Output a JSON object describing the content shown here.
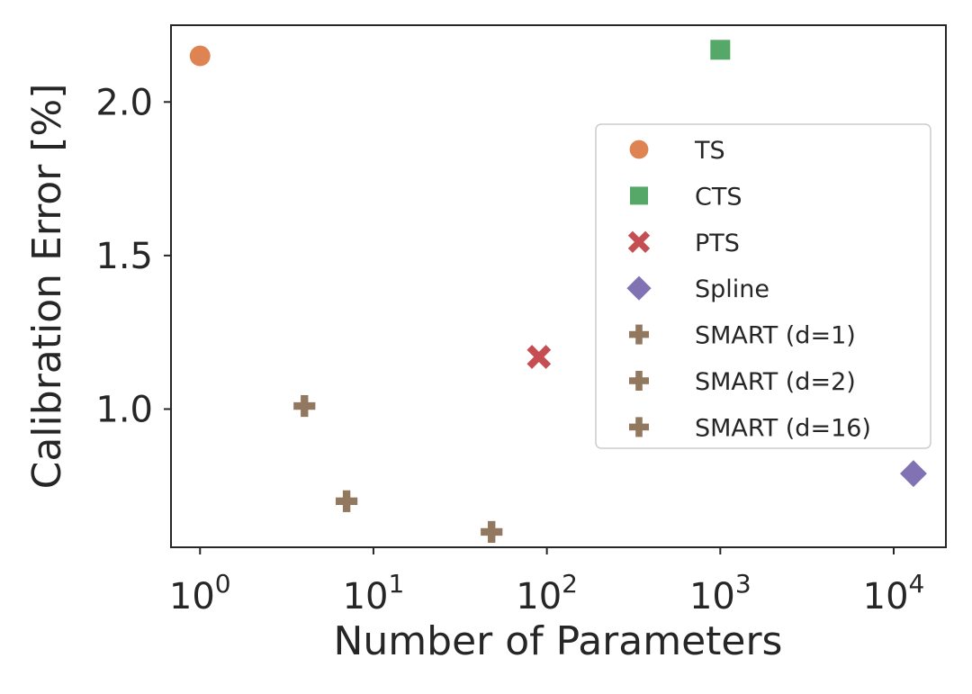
{
  "chart_data": {
    "type": "scatter",
    "title": "",
    "xlabel": "Number of Parameters",
    "ylabel": "Calibration Error [%]",
    "xscale": "log",
    "xlim": [
      0.68,
      20000
    ],
    "ylim": [
      0.55,
      2.25
    ],
    "grid": false,
    "legend_position": "center-right",
    "x_ticks": [
      {
        "value": 1,
        "base": "10",
        "exp": "0"
      },
      {
        "value": 10,
        "base": "10",
        "exp": "1"
      },
      {
        "value": 100,
        "base": "10",
        "exp": "2"
      },
      {
        "value": 1000,
        "base": "10",
        "exp": "3"
      },
      {
        "value": 10000,
        "base": "10",
        "exp": "4"
      }
    ],
    "y_ticks": [
      {
        "value": 1.0,
        "label": "1.0"
      },
      {
        "value": 1.5,
        "label": "1.5"
      },
      {
        "value": 2.0,
        "label": "2.0"
      }
    ],
    "series": [
      {
        "name": "TS",
        "marker": "circle",
        "color": "#dd8452",
        "points": [
          {
            "x": 1,
            "y": 2.15
          }
        ]
      },
      {
        "name": "CTS",
        "marker": "square",
        "color": "#55a868",
        "points": [
          {
            "x": 1000,
            "y": 2.17
          }
        ]
      },
      {
        "name": "PTS",
        "marker": "x",
        "color": "#c44e52",
        "points": [
          {
            "x": 90,
            "y": 1.17
          }
        ]
      },
      {
        "name": "Spline",
        "marker": "diamond",
        "color": "#8172b3",
        "points": [
          {
            "x": 13000,
            "y": 0.79
          }
        ]
      },
      {
        "name": "SMART (d=1)",
        "marker": "plus",
        "color": "#937860",
        "points": [
          {
            "x": 4,
            "y": 1.01
          }
        ]
      },
      {
        "name": "SMART (d=2)",
        "marker": "plus",
        "color": "#937860",
        "points": [
          {
            "x": 7,
            "y": 0.7
          }
        ]
      },
      {
        "name": "SMART (d=16)",
        "marker": "plus",
        "color": "#937860",
        "points": [
          {
            "x": 48,
            "y": 0.6
          }
        ]
      }
    ]
  }
}
